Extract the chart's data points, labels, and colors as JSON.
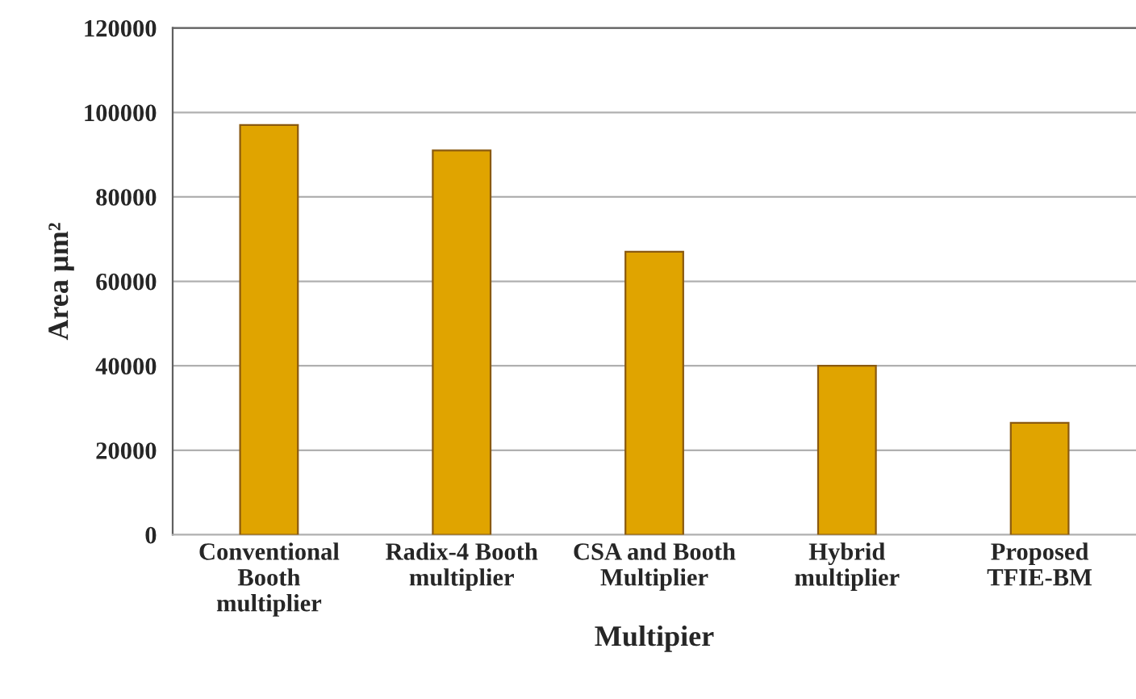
{
  "chart_data": {
    "type": "bar",
    "xlabel": "Multipier",
    "ylabel": "Area µm²",
    "categories": [
      "Conventional\nBooth\nmultiplier",
      "Radix-4 Booth\nmultiplier",
      "CSA and Booth\nMultiplier",
      "Hybrid\nmultiplier",
      "Proposed\nTFIE-BM"
    ],
    "values": [
      97000,
      91000,
      67000,
      40000,
      26500
    ],
    "color": "#e0a400",
    "ylim": [
      0,
      120000
    ],
    "yticks": [
      0,
      20000,
      40000,
      60000,
      80000,
      100000,
      120000
    ],
    "grid": "y"
  }
}
